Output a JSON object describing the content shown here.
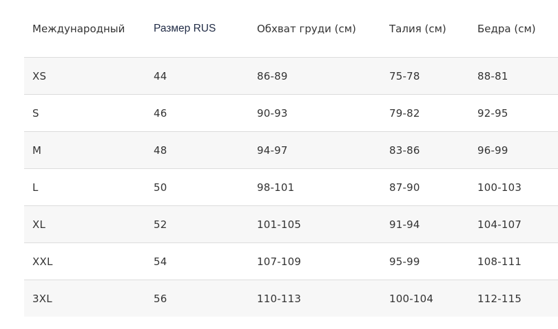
{
  "table": {
    "headers": [
      "Международный",
      "Размер RUS",
      "Обхват груди (см)",
      "Талия (см)",
      "Бедра (см)"
    ],
    "rows": [
      [
        "XS",
        "44",
        "86-89",
        "75-78",
        "88-81"
      ],
      [
        "S",
        "46",
        "90-93",
        "79-82",
        "92-95"
      ],
      [
        "M",
        "48",
        "94-97",
        "83-86",
        "96-99"
      ],
      [
        "L",
        "50",
        "98-101",
        "87-90",
        "100-103"
      ],
      [
        "XL",
        "52",
        "101-105",
        "91-94",
        "104-107"
      ],
      [
        "XXL",
        "54",
        "107-109",
        "95-99",
        "108-111"
      ],
      [
        "3XL",
        "56",
        "110-113",
        "100-104",
        "112-115"
      ]
    ]
  },
  "colors": {
    "row_stripe": "#f7f7f7",
    "row_plain": "#ffffff",
    "divider": "#dcdcdc",
    "text": "#333333",
    "header_accent_text": "#1f2a44"
  }
}
